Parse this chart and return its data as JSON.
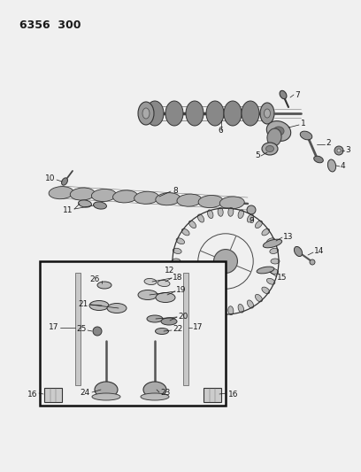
{
  "title": "6356  300",
  "bg_color": "#f0f0f0",
  "line_color": "#1a1a1a",
  "figsize": [
    4.08,
    5.33
  ],
  "dpi": 100,
  "xlim": [
    0,
    408
  ],
  "ylim": [
    0,
    533
  ]
}
